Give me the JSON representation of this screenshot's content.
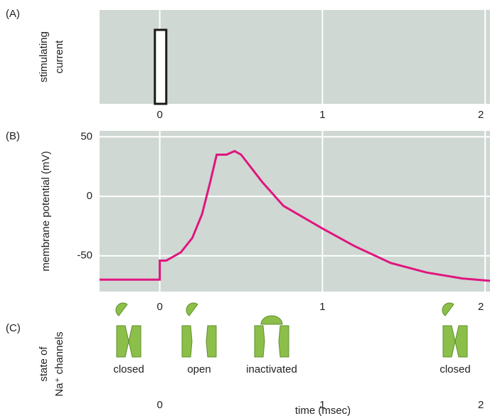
{
  "chart_data": [
    {
      "type": "pulse",
      "panel_label": "(A)",
      "y_label": [
        "stimulating",
        "current"
      ],
      "x": [
        -0.03,
        0.04
      ],
      "color": "#1a1a1a",
      "xlim": [
        -0.37,
        2.03
      ],
      "xticks": [
        0,
        1,
        2
      ],
      "grid": true
    },
    {
      "type": "line",
      "panel_label": "(B)",
      "y_label": "membrane potential (mV)",
      "x": [
        -0.37,
        0,
        0,
        0.04,
        0.13,
        0.2,
        0.26,
        0.31,
        0.35,
        0.41,
        0.46,
        0.5,
        0.63,
        0.76,
        1.0,
        1.2,
        1.42,
        1.64,
        1.86,
        2.03
      ],
      "values": [
        -70,
        -70,
        -54,
        -54,
        -47,
        -35,
        -15,
        12,
        35,
        35,
        38,
        35,
        12,
        -8,
        -27,
        -42,
        -56,
        -64,
        -69,
        -71
      ],
      "color": "#e0157f",
      "xlim": [
        -0.37,
        2.03
      ],
      "xticks": [
        0,
        1,
        2
      ],
      "ylim": [
        -80,
        55
      ],
      "yticks": [
        -50,
        0,
        50
      ],
      "grid": true
    },
    {
      "type": "states",
      "panel_label": "(C)",
      "y_label": [
        "state of",
        "Na⁺ channels"
      ],
      "states": [
        "closed",
        "open",
        "inactivated",
        "closed"
      ],
      "xlim": [
        -0.37,
        2.03
      ],
      "xticks": [
        0,
        1,
        2
      ],
      "x_label": "time (msec)"
    }
  ]
}
